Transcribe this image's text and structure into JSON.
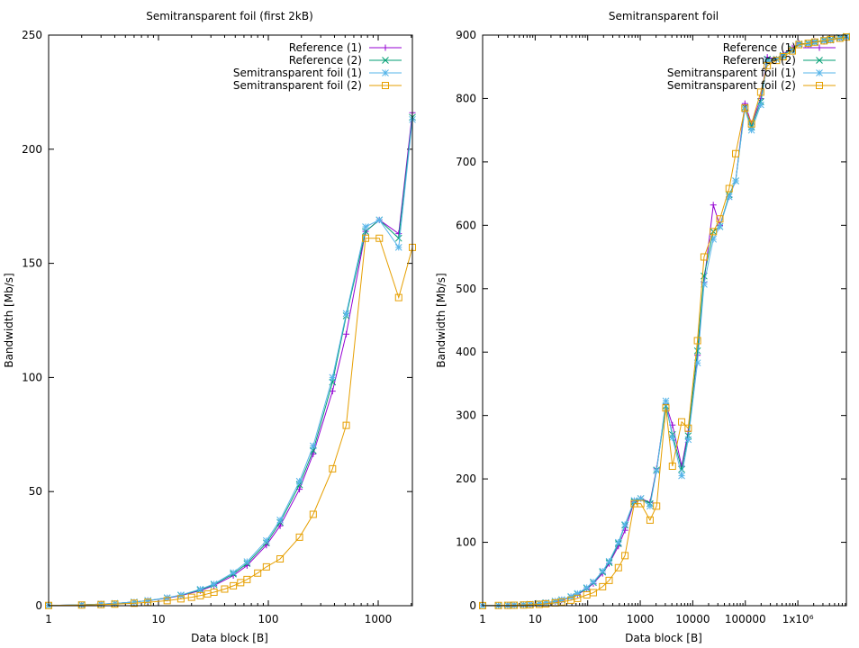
{
  "chart_data": [
    {
      "type": "line",
      "title": "Semitransparent foil (first 2kB)",
      "xlabel": "Data block [B]",
      "ylabel": "Bandwidth [Mb/s]",
      "xscale": "log",
      "xlim": [
        1,
        2048
      ],
      "ylim": [
        0,
        250
      ],
      "xticks": [
        {
          "v": 1,
          "label": "1"
        },
        {
          "v": 10,
          "label": "10"
        },
        {
          "v": 100,
          "label": "100"
        },
        {
          "v": 1000,
          "label": "1000"
        }
      ],
      "yticks": [
        {
          "v": 0,
          "label": "0"
        },
        {
          "v": 50,
          "label": "50"
        },
        {
          "v": 100,
          "label": "100"
        },
        {
          "v": 150,
          "label": "150"
        },
        {
          "v": 200,
          "label": "200"
        },
        {
          "v": 250,
          "label": "250"
        }
      ],
      "legend_position": "top-right",
      "series": [
        {
          "name": "Reference (1)",
          "color": "#9400d3",
          "marker": "plus",
          "x": [
            1,
            2,
            3,
            4,
            6,
            8,
            12,
            16,
            24,
            32,
            48,
            64,
            96,
            128,
            192,
            256,
            384,
            512,
            768,
            1024,
            1536,
            2048
          ],
          "y": [
            0.1,
            0.4,
            0.7,
            1,
            1.6,
            2.2,
            3.3,
            4.4,
            6.6,
            8.8,
            13.2,
            17.6,
            26.5,
            35,
            51,
            66.5,
            94,
            119,
            164,
            169,
            163,
            216
          ]
        },
        {
          "name": "Reference (2)",
          "color": "#009e73",
          "marker": "x",
          "x": [
            1,
            2,
            3,
            4,
            6,
            8,
            12,
            16,
            24,
            32,
            48,
            64,
            96,
            128,
            192,
            256,
            384,
            512,
            768,
            1024,
            1536,
            2048
          ],
          "y": [
            0.1,
            0.4,
            0.7,
            1,
            1.6,
            2.2,
            3.4,
            4.6,
            6.9,
            9.2,
            13.9,
            18.5,
            27.5,
            36.5,
            53,
            68,
            98,
            127,
            164,
            169,
            161,
            214
          ]
        },
        {
          "name": "Semitransparent foil (1)",
          "color": "#56b4e9",
          "marker": "star",
          "x": [
            1,
            2,
            3,
            4,
            6,
            8,
            12,
            16,
            24,
            32,
            48,
            64,
            96,
            128,
            192,
            256,
            384,
            512,
            768,
            1024,
            1536,
            2048
          ],
          "y": [
            0.1,
            0.4,
            0.7,
            1,
            1.6,
            2.3,
            3.5,
            4.7,
            7.2,
            9.5,
            14.5,
            19.3,
            28.5,
            37.5,
            54.5,
            70,
            100,
            128,
            166,
            169,
            157,
            213
          ]
        },
        {
          "name": "Semitransparent foil (2)",
          "color": "#e69f00",
          "marker": "square",
          "x": [
            1,
            2,
            3,
            4,
            6,
            8,
            12,
            16,
            20,
            24,
            28,
            32,
            40,
            48,
            56,
            64,
            80,
            96,
            128,
            192,
            256,
            384,
            512,
            768,
            1024,
            1536,
            2048
          ],
          "y": [
            0.1,
            0.3,
            0.5,
            0.7,
            1.1,
            1.5,
            2.2,
            3,
            3.7,
            4.4,
            5.2,
            5.9,
            7.3,
            8.7,
            10.1,
            11.5,
            14.3,
            17,
            20.5,
            30,
            40,
            60,
            79,
            161,
            161,
            135,
            157
          ]
        }
      ]
    },
    {
      "type": "line",
      "title": "Semitransparent foil",
      "xlabel": "Data block [B]",
      "ylabel": "Bandwidth [Mb/s]",
      "xscale": "log",
      "xlim": [
        1,
        8388608
      ],
      "ylim": [
        0,
        900
      ],
      "xticks": [
        {
          "v": 1,
          "label": "1"
        },
        {
          "v": 10,
          "label": "10"
        },
        {
          "v": 100,
          "label": "100"
        },
        {
          "v": 1000,
          "label": "1000"
        },
        {
          "v": 10000,
          "label": "10000"
        },
        {
          "v": 100000,
          "label": "100000"
        },
        {
          "v": 1000000,
          "label": "1x10⁶"
        }
      ],
      "yticks": [
        {
          "v": 0,
          "label": "0"
        },
        {
          "v": 100,
          "label": "100"
        },
        {
          "v": 200,
          "label": "200"
        },
        {
          "v": 300,
          "label": "300"
        },
        {
          "v": 400,
          "label": "400"
        },
        {
          "v": 500,
          "label": "500"
        },
        {
          "v": 600,
          "label": "600"
        },
        {
          "v": 700,
          "label": "700"
        },
        {
          "v": 800,
          "label": "800"
        },
        {
          "v": 900,
          "label": "900"
        }
      ],
      "legend_position": "top-right",
      "series": [
        {
          "name": "Reference (1)",
          "color": "#9400d3",
          "marker": "plus",
          "x": [
            1,
            2,
            3,
            4,
            6,
            8,
            12,
            16,
            24,
            32,
            48,
            64,
            96,
            128,
            192,
            256,
            384,
            512,
            768,
            1024,
            1536,
            2048,
            3072,
            4096,
            6144,
            8192,
            12288,
            16384,
            24576,
            32768,
            49152,
            65536,
            98304,
            131072,
            196608,
            262144,
            393216,
            524288,
            786432,
            1048576,
            1572864,
            2097152,
            3145728,
            4194304,
            6291456,
            8388608
          ],
          "y": [
            0.1,
            0.4,
            0.7,
            1,
            1.6,
            2.2,
            3.3,
            4.4,
            6.6,
            8.8,
            13.2,
            17.6,
            26.5,
            35,
            51,
            66.5,
            94,
            119,
            164,
            169,
            163,
            216,
            318,
            285,
            220,
            275,
            395,
            510,
            632,
            600,
            645,
            670,
            792,
            760,
            800,
            865,
            862,
            870,
            880,
            887,
            886,
            890,
            890,
            892,
            895,
            897
          ]
        },
        {
          "name": "Reference (2)",
          "color": "#009e73",
          "marker": "x",
          "x": [
            1,
            2,
            3,
            4,
            6,
            8,
            12,
            16,
            24,
            32,
            48,
            64,
            96,
            128,
            192,
            256,
            384,
            512,
            768,
            1024,
            1536,
            2048,
            3072,
            4096,
            6144,
            8192,
            12288,
            16384,
            24576,
            32768,
            49152,
            65536,
            98304,
            131072,
            196608,
            262144,
            393216,
            524288,
            786432,
            1048576,
            1572864,
            2097152,
            3145728,
            4194304,
            6291456,
            8388608
          ],
          "y": [
            0.1,
            0.4,
            0.7,
            1,
            1.6,
            2.2,
            3.4,
            4.6,
            6.9,
            9.2,
            13.9,
            18.5,
            27.5,
            36.5,
            53,
            68,
            98,
            127,
            164,
            169,
            161,
            214,
            315,
            270,
            215,
            268,
            402,
            520,
            590,
            598,
            648,
            670,
            786,
            755,
            795,
            862,
            862,
            868,
            878,
            886,
            887,
            889,
            892,
            893,
            896,
            898
          ]
        },
        {
          "name": "Semitransparent foil (1)",
          "color": "#56b4e9",
          "marker": "star",
          "x": [
            1,
            2,
            3,
            4,
            6,
            8,
            12,
            16,
            24,
            32,
            48,
            64,
            96,
            128,
            192,
            256,
            384,
            512,
            768,
            1024,
            1536,
            2048,
            3072,
            4096,
            6144,
            8192,
            12288,
            16384,
            24576,
            32768,
            49152,
            65536,
            98304,
            131072,
            196608,
            262144,
            393216,
            524288,
            786432,
            1048576,
            1572864,
            2097152,
            3145728,
            4194304,
            6291456,
            8388608
          ],
          "y": [
            0.1,
            0.4,
            0.7,
            1,
            1.6,
            2.3,
            3.5,
            4.7,
            7.2,
            9.5,
            14.5,
            19.3,
            28.5,
            37.5,
            54.5,
            70,
            100,
            128,
            166,
            169,
            157,
            213,
            323,
            265,
            205,
            262,
            383,
            507,
            578,
            598,
            645,
            670,
            783,
            750,
            790,
            858,
            862,
            866,
            875,
            885,
            886,
            888,
            891,
            892,
            895,
            897
          ]
        },
        {
          "name": "Semitransparent foil (2)",
          "color": "#e69f00",
          "marker": "square",
          "x": [
            1,
            2,
            3,
            4,
            6,
            8,
            12,
            16,
            24,
            32,
            48,
            64,
            96,
            128,
            192,
            256,
            384,
            512,
            768,
            1024,
            1536,
            2048,
            3072,
            4096,
            6144,
            8192,
            12288,
            16384,
            24576,
            32768,
            49152,
            65536,
            98304,
            131072,
            196608,
            262144,
            393216,
            524288,
            786432,
            1048576,
            1572864,
            2097152,
            3145728,
            4194304,
            6291456,
            8388608
          ],
          "y": [
            0.1,
            0.3,
            0.5,
            0.7,
            1.1,
            1.5,
            2.2,
            3,
            4.4,
            5.9,
            8.7,
            11.5,
            17,
            20.5,
            30,
            40,
            60,
            79,
            161,
            161,
            135,
            157,
            312,
            220,
            290,
            280,
            418,
            550,
            590,
            610,
            658,
            713,
            785,
            760,
            810,
            852,
            860,
            866,
            875,
            885,
            887,
            889,
            891,
            893,
            895,
            897
          ]
        }
      ]
    }
  ]
}
